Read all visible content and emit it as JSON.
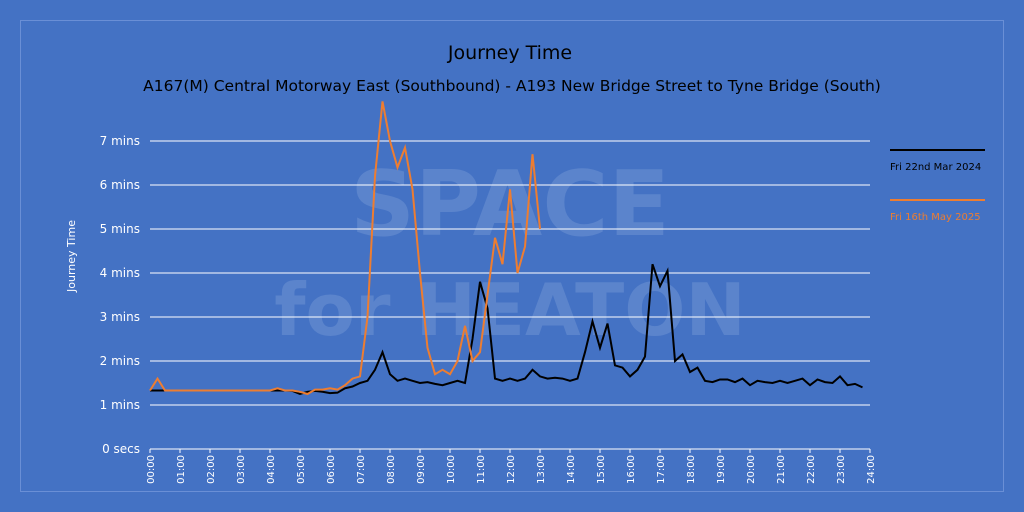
{
  "chart_data": {
    "type": "line",
    "title": "Journey Time",
    "subtitle": "A167(M) Central Motorway East (Southbound) - A193 New Bridge Street to Tyne Bridge (South)",
    "y_label": "Journey Time",
    "watermark": [
      "SPACE",
      "for HEATON"
    ],
    "x": [
      0,
      0.25,
      0.5,
      0.75,
      1,
      1.25,
      1.5,
      1.75,
      2,
      2.25,
      2.5,
      2.75,
      3,
      3.25,
      3.5,
      3.75,
      4,
      4.25,
      4.5,
      4.75,
      5,
      5.25,
      5.5,
      5.75,
      6,
      6.25,
      6.5,
      6.75,
      7,
      7.25,
      7.5,
      7.75,
      8,
      8.25,
      8.5,
      8.75,
      9,
      9.25,
      9.5,
      9.75,
      10,
      10.25,
      10.5,
      10.75,
      11,
      11.25,
      11.5,
      11.75,
      12,
      12.25,
      12.5,
      12.75,
      13,
      13.25,
      13.5,
      13.75,
      14,
      14.25,
      14.5,
      14.75,
      15,
      15.25,
      15.5,
      15.75,
      16,
      16.25,
      16.5,
      16.75,
      17,
      17.25,
      17.5,
      17.75,
      18,
      18.25,
      18.5,
      18.75,
      19,
      19.25,
      19.5,
      19.75,
      20,
      20.25,
      20.5,
      20.75,
      21,
      21.25,
      21.5,
      21.75,
      22,
      22.25,
      22.5,
      22.75,
      23,
      23.25,
      23.5,
      23.75
    ],
    "series": [
      {
        "name": "Fri 22nd Mar 2024",
        "color": "#000000",
        "values": [
          1.33,
          1.33,
          1.33,
          1.33,
          1.33,
          1.33,
          1.33,
          1.33,
          1.33,
          1.33,
          1.33,
          1.33,
          1.33,
          1.33,
          1.33,
          1.33,
          1.33,
          1.33,
          1.33,
          1.32,
          1.25,
          1.3,
          1.32,
          1.3,
          1.27,
          1.28,
          1.38,
          1.42,
          1.5,
          1.55,
          1.8,
          2.2,
          1.7,
          1.55,
          1.6,
          1.55,
          1.5,
          1.52,
          1.48,
          1.45,
          1.5,
          1.55,
          1.5,
          2.5,
          3.8,
          3.2,
          1.6,
          1.55,
          1.6,
          1.55,
          1.6,
          1.8,
          1.65,
          1.6,
          1.62,
          1.6,
          1.55,
          1.6,
          2.2,
          2.9,
          2.3,
          2.85,
          1.9,
          1.85,
          1.65,
          1.8,
          2.1,
          4.2,
          3.7,
          4.05,
          2.0,
          2.15,
          1.75,
          1.85,
          1.55,
          1.52,
          1.58,
          1.58,
          1.52,
          1.6,
          1.45,
          1.55,
          1.52,
          1.5,
          1.55,
          1.5,
          1.55,
          1.6,
          1.45,
          1.58,
          1.52,
          1.5,
          1.65,
          1.45,
          1.48,
          1.4
        ]
      },
      {
        "name": "Fri 16th May 2025",
        "color": "#ed7d31",
        "values": [
          1.33,
          1.6,
          1.33,
          1.33,
          1.33,
          1.33,
          1.33,
          1.33,
          1.33,
          1.33,
          1.33,
          1.33,
          1.33,
          1.33,
          1.33,
          1.33,
          1.33,
          1.38,
          1.33,
          1.33,
          1.3,
          1.25,
          1.35,
          1.35,
          1.38,
          1.35,
          1.45,
          1.6,
          1.65,
          3.0,
          6.2,
          7.9,
          7.0,
          6.4,
          6.85,
          5.9,
          4.0,
          2.3,
          1.7,
          1.8,
          1.7,
          2.0,
          2.8,
          2.0,
          2.2,
          3.5,
          4.8,
          4.2,
          5.9,
          4.0,
          4.6,
          6.7,
          5.0,
          null,
          null,
          null,
          null,
          null,
          null,
          null,
          null,
          null,
          null,
          null,
          null,
          null,
          null,
          null,
          null,
          null,
          null,
          null,
          null,
          null,
          null,
          null,
          null,
          null,
          null,
          null,
          null,
          null,
          null,
          null,
          null,
          null,
          null,
          null,
          null,
          null,
          null,
          null,
          null,
          null,
          null,
          null
        ]
      }
    ],
    "xlim": [
      0,
      24
    ],
    "xticks": [
      {
        "value": 0,
        "label": "00:00"
      },
      {
        "value": 1,
        "label": "01:00"
      },
      {
        "value": 2,
        "label": "02:00"
      },
      {
        "value": 3,
        "label": "03:00"
      },
      {
        "value": 4,
        "label": "04:00"
      },
      {
        "value": 5,
        "label": "05:00"
      },
      {
        "value": 6,
        "label": "06:00"
      },
      {
        "value": 7,
        "label": "07:00"
      },
      {
        "value": 8,
        "label": "08:00"
      },
      {
        "value": 9,
        "label": "09:00"
      },
      {
        "value": 10,
        "label": "10:00"
      },
      {
        "value": 11,
        "label": "11:00"
      },
      {
        "value": 12,
        "label": "12:00"
      },
      {
        "value": 13,
        "label": "13:00"
      },
      {
        "value": 14,
        "label": "14:00"
      },
      {
        "value": 15,
        "label": "15:00"
      },
      {
        "value": 16,
        "label": "16:00"
      },
      {
        "value": 17,
        "label": "17:00"
      },
      {
        "value": 18,
        "label": "18:00"
      },
      {
        "value": 19,
        "label": "19:00"
      },
      {
        "value": 20,
        "label": "20:00"
      },
      {
        "value": 21,
        "label": "21:00"
      },
      {
        "value": 22,
        "label": "22:00"
      },
      {
        "value": 23,
        "label": "23:00"
      },
      {
        "value": 24,
        "label": "24:00"
      }
    ],
    "ylim": [
      0,
      8
    ],
    "yticks": [
      {
        "value": 0,
        "label": "0 secs"
      },
      {
        "value": 1,
        "label": "1 mins"
      },
      {
        "value": 2,
        "label": "2 mins"
      },
      {
        "value": 3,
        "label": "3 mins"
      },
      {
        "value": 4,
        "label": "4 mins"
      },
      {
        "value": 5,
        "label": "5 mins"
      },
      {
        "value": 6,
        "label": "6 mins"
      },
      {
        "value": 7,
        "label": "7 mins"
      }
    ],
    "grid": true,
    "legend": "right"
  }
}
